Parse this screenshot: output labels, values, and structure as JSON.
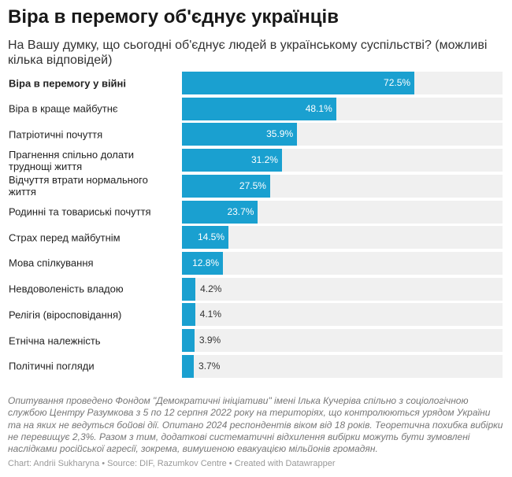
{
  "title": "Віра в перемогу об'єднує українців",
  "subtitle": "На Вашу думку, що сьогодні об'єднує людей в українському суспільстві? (можливі кілька відповідей)",
  "chart_data": {
    "type": "bar",
    "orientation": "horizontal",
    "xlim": [
      0,
      100
    ],
    "unit": "%",
    "bar_color": "#1aa0d0",
    "track_color": "#f0f0f0",
    "categories": [
      "Віра в перемогу у війні",
      "Віра в краще майбутнє",
      "Патріотичні почуття",
      "Прагнення спільно долати труднощі життя",
      "Відчуття втрати нормального життя",
      "Родинні та товариські почуття",
      "Страх перед майбутнім",
      "Мова спілкування",
      "Невдоволеність владою",
      "Релігія (віросповідання)",
      "Етнічна належність",
      "Політичні погляди"
    ],
    "values": [
      72.5,
      48.1,
      35.9,
      31.2,
      27.5,
      23.7,
      14.5,
      12.8,
      4.2,
      4.1,
      3.9,
      3.7
    ],
    "value_labels": [
      "72.5%",
      "48.1%",
      "35.9%",
      "31.2%",
      "27.5%",
      "23.7%",
      "14.5%",
      "12.8%",
      "4.2%",
      "4.1%",
      "3.9%",
      "3.7%"
    ]
  },
  "notes": "Опитування проведено Фондом \"Демократичні ініціативи\" імені Ілька Кучеріва спільно з соціологічною службою Центру Разумкова з 5 по 12 серпня 2022 року на територіях, що контролюються урядом України та на яких не ведуться бойові дії. Опитано 2024 респондентів віком від 18 років. Теоретична похибка вибірки не перевищує 2,3%. Разом з тим, додаткові систематичні відхилення вибірки можуть бути зумовлені наслідками російської агресії, зокрема, вимушеною евакуацією мільйонів громадян.",
  "credit": "Chart: Andrii Sukharyna • Source: DIF, Razumkov Centre • Created with Datawrapper"
}
